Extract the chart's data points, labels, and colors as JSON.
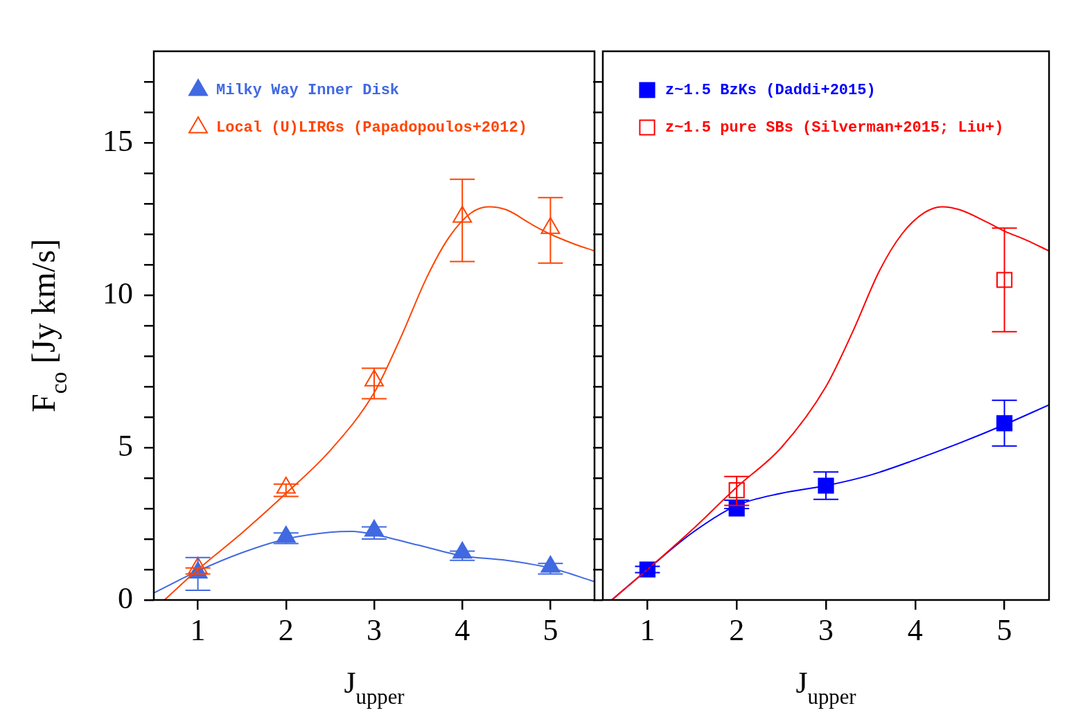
{
  "chart_data": [
    {
      "type": "scatter",
      "xlabel": "J$_{upper}$",
      "ylabel": "F$_{co}$ [Jy km/s]",
      "xlim": [
        0.5,
        5.5
      ],
      "ylim": [
        0,
        18
      ],
      "xticks": [
        1,
        2,
        3,
        4,
        5
      ],
      "yticks": [
        0,
        {
          "value": 1,
          "label": null
        },
        {
          "value": 2,
          "label": null
        },
        {
          "value": 3,
          "label": null
        },
        {
          "value": 4,
          "label": null
        },
        5,
        {
          "value": 6,
          "label": null
        },
        {
          "value": 7,
          "label": null
        },
        {
          "value": 8,
          "label": null
        },
        {
          "value": 9,
          "label": null
        },
        10,
        {
          "value": 11,
          "label": null
        },
        {
          "value": 12,
          "label": null
        },
        {
          "value": 13,
          "label": null
        },
        {
          "value": 14,
          "label": null
        },
        15,
        {
          "value": 16,
          "label": null
        },
        {
          "value": 17,
          "label": null
        }
      ],
      "legend": "top left",
      "grid": false,
      "series": [
        {
          "type": "line",
          "color": "#ff4400",
          "marker": "none",
          "x": [
            0.62,
            1,
            1.5,
            2,
            2.5,
            3,
            3.3,
            3.6,
            3.85,
            4.1,
            4.3,
            4.5,
            4.8,
            5,
            5.25,
            5.5
          ],
          "values": [
            0,
            1.0,
            2.2,
            3.5,
            4.9,
            6.8,
            8.6,
            10.6,
            11.9,
            12.7,
            12.9,
            12.8,
            12.3,
            12.0,
            11.7,
            11.45
          ]
        },
        {
          "type": "line",
          "color": "#4169e1",
          "marker": "none",
          "x": [
            0.5,
            1,
            1.5,
            2,
            2.5,
            2.75,
            3,
            3.5,
            4,
            4.5,
            5,
            5.5
          ],
          "values": [
            0.23,
            0.95,
            1.55,
            2.0,
            2.22,
            2.25,
            2.15,
            1.8,
            1.45,
            1.3,
            1.05,
            0.6
          ]
        },
        {
          "name": "Milky Way Inner Disk",
          "color": "#4169e1",
          "marker": "triangle",
          "x": [
            1,
            2,
            3,
            4,
            5
          ],
          "values": [
            0.9,
            2.07,
            2.27,
            1.55,
            1.09
          ],
          "errors": [
            [
              0.32,
              1.39
            ],
            [
              1.85,
              2.2
            ],
            [
              2.0,
              2.4
            ],
            [
              1.3,
              1.6
            ],
            [
              0.85,
              1.2
            ]
          ]
        },
        {
          "name": "Local (U)LIRGs (Papadopoulos+2012)",
          "color": "#ff4400",
          "marker": "triangle",
          "x": [
            1,
            2,
            3,
            4,
            5
          ],
          "values": [
            1.05,
            3.68,
            7.2,
            12.57,
            12.2
          ],
          "errors": [
            [
              0.85,
              1.05
            ],
            [
              3.4,
              3.8
            ],
            [
              6.6,
              7.6
            ],
            [
              11.1,
              13.8
            ],
            [
              11.05,
              13.2
            ]
          ]
        }
      ]
    },
    {
      "type": "scatter",
      "xlabel": "J$_{upper}$",
      "xlim": [
        0.5,
        5.5
      ],
      "ylim": [
        0,
        18
      ],
      "xticks": [
        1,
        2,
        3,
        4,
        5
      ],
      "yticks": [
        0,
        {
          "value": 1,
          "label": null
        },
        {
          "value": 2,
          "label": null
        },
        {
          "value": 3,
          "label": null
        },
        {
          "value": 4,
          "label": null
        },
        5,
        {
          "value": 6,
          "label": null
        },
        {
          "value": 7,
          "label": null
        },
        {
          "value": 8,
          "label": null
        },
        {
          "value": 9,
          "label": null
        },
        10,
        {
          "value": 11,
          "label": null
        },
        {
          "value": 12,
          "label": null
        },
        {
          "value": 13,
          "label": null
        },
        {
          "value": 14,
          "label": null
        },
        15,
        {
          "value": 16,
          "label": null
        },
        {
          "value": 17,
          "label": null
        }
      ],
      "tick_labels": "x",
      "legend": "top left",
      "grid": false,
      "series": [
        {
          "type": "line",
          "color": "#ff0000",
          "marker": "none",
          "x": [
            0.6,
            1,
            1.5,
            2,
            2.5,
            3,
            3.3,
            3.6,
            3.85,
            4.1,
            4.3,
            4.5,
            4.8,
            5,
            5.25,
            5.5
          ],
          "values": [
            0,
            1.0,
            2.3,
            3.7,
            5.0,
            7.0,
            8.8,
            10.8,
            12.0,
            12.7,
            12.9,
            12.8,
            12.4,
            12.1,
            11.8,
            11.45
          ]
        },
        {
          "type": "line",
          "color": "#0000ff",
          "marker": "none",
          "x": [
            0.6,
            1,
            1.5,
            2,
            2.5,
            3,
            3.5,
            4,
            4.5,
            5,
            5.5
          ],
          "values": [
            0,
            1.0,
            2.2,
            3.1,
            3.5,
            3.75,
            4.1,
            4.6,
            5.15,
            5.75,
            6.4
          ]
        },
        {
          "name": "z~1.5 BzKs (Daddi+2015)",
          "color": "#0000ff",
          "marker": "square",
          "x": [
            1,
            2,
            3,
            5
          ],
          "values": [
            1.0,
            3.0,
            3.75,
            5.8
          ],
          "errors": [
            [
              0.9,
              1.1
            ],
            [
              3.0,
              3.27
            ],
            [
              3.3,
              4.2
            ],
            [
              5.05,
              6.55
            ]
          ]
        },
        {
          "name": "z~1.5 pure SBs (Silverman+2015; Liu+)",
          "color": "#ff0000",
          "marker": "square",
          "x": [
            2,
            5
          ],
          "values": [
            3.6,
            10.5
          ],
          "errors": [
            [
              3.1,
              4.05
            ],
            [
              8.8,
              12.2
            ]
          ]
        }
      ]
    }
  ]
}
